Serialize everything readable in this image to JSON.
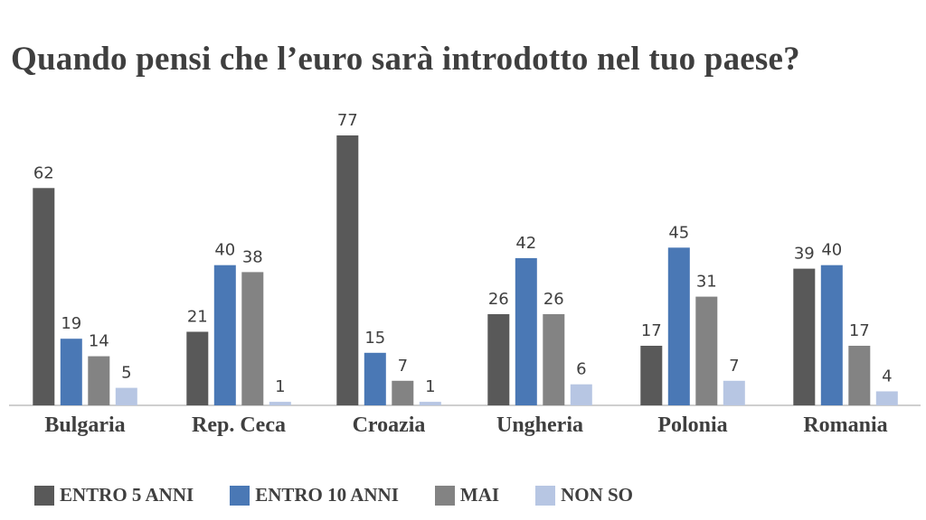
{
  "chart_data": {
    "type": "bar",
    "title": "Quando pensi che l’euro sarà introdotto nel tuo paese?",
    "categories": [
      "Bulgaria",
      "Rep. Ceca",
      "Croazia",
      "Ungheria",
      "Polonia",
      "Romania"
    ],
    "series": [
      {
        "name": "ENTRO 5 ANNI",
        "color": "#595959",
        "values": [
          62,
          21,
          77,
          26,
          17,
          39
        ]
      },
      {
        "name": "ENTRO 10 ANNI",
        "color": "#4a78b5",
        "values": [
          19,
          40,
          15,
          42,
          45,
          40
        ]
      },
      {
        "name": "MAI",
        "color": "#838383",
        "values": [
          14,
          38,
          7,
          26,
          31,
          17
        ]
      },
      {
        "name": "NON SO",
        "color": "#b7c6e3",
        "values": [
          5,
          1,
          1,
          6,
          7,
          4
        ]
      }
    ],
    "ylim": [
      0,
      80
    ],
    "grid": false,
    "data_labels": true,
    "legend_position": "bottom"
  }
}
